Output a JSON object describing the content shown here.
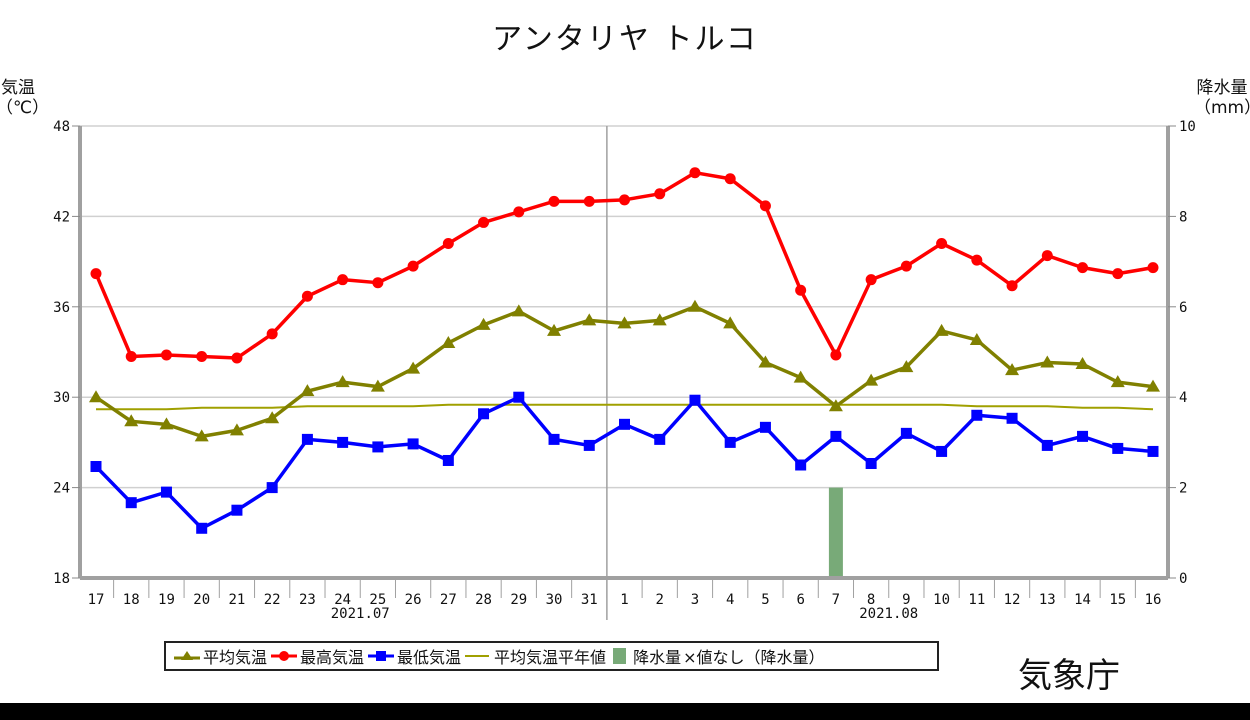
{
  "title": "アンタリヤ トルコ",
  "credit": "気象庁",
  "left_axis": {
    "label_line1": "気温",
    "label_line2": "（℃）",
    "ticks": [
      "48",
      "42",
      "36",
      "30",
      "24",
      "18"
    ]
  },
  "right_axis": {
    "label_line1": "降水量",
    "label_line2": "（mm）",
    "ticks": [
      "10",
      "8",
      "6",
      "4",
      "2",
      "0"
    ]
  },
  "legend": {
    "mean": "平均気温",
    "max": "最高気温",
    "min": "最低気温",
    "normal": "平均気温平年値",
    "precip": "降水量",
    "no_value": "×値なし（降水量）"
  },
  "colors": {
    "mean": "#808000",
    "max": "#ff0000",
    "min": "#0000ff",
    "normal": "#a0a000",
    "precip": "#78aa78",
    "grid": "#d0d0d0",
    "axis": "#a0a0a0"
  },
  "chart_data": {
    "type": "line",
    "title": "アンタリヤ トルコ",
    "xlabel": "",
    "ylabel": "気温（℃）",
    "y2label": "降水量（mm）",
    "ylim": [
      18,
      48
    ],
    "y2lim": [
      0,
      10
    ],
    "grid": true,
    "legend_position": "bottom",
    "month_labels": [
      {
        "label": "2021.07",
        "at": "24"
      },
      {
        "label": "2021.08",
        "at": "8"
      }
    ],
    "categories": [
      "17",
      "18",
      "19",
      "20",
      "21",
      "22",
      "23",
      "24",
      "25",
      "26",
      "27",
      "28",
      "29",
      "30",
      "31",
      "1",
      "2",
      "3",
      "4",
      "5",
      "6",
      "7",
      "8",
      "9",
      "10",
      "11",
      "12",
      "13",
      "14",
      "15",
      "16"
    ],
    "series": [
      {
        "name": "平均気温",
        "type": "line",
        "marker": "triangle",
        "values": [
          30.0,
          28.4,
          28.2,
          27.4,
          27.8,
          28.6,
          30.4,
          31.0,
          30.7,
          31.9,
          33.6,
          34.8,
          35.7,
          34.4,
          35.1,
          34.9,
          35.1,
          36.0,
          34.9,
          32.3,
          31.3,
          29.4,
          31.1,
          32.0,
          34.4,
          33.8,
          31.8,
          32.3,
          32.2,
          31.0,
          30.7
        ]
      },
      {
        "name": "最高気温",
        "type": "line",
        "marker": "circle",
        "values": [
          38.2,
          32.7,
          32.8,
          32.7,
          32.6,
          34.2,
          36.7,
          37.8,
          37.6,
          38.7,
          40.2,
          41.6,
          42.3,
          43.0,
          43.0,
          43.1,
          43.5,
          44.9,
          44.5,
          42.7,
          37.1,
          32.8,
          37.8,
          38.7,
          40.2,
          39.1,
          37.4,
          39.4,
          38.6,
          38.2,
          38.6
        ]
      },
      {
        "name": "最低気温",
        "type": "line",
        "marker": "square",
        "values": [
          25.4,
          23.0,
          23.7,
          21.3,
          22.5,
          24.0,
          27.2,
          27.0,
          26.7,
          26.9,
          25.8,
          28.9,
          30.0,
          27.2,
          26.8,
          28.2,
          27.2,
          29.8,
          27.0,
          28.0,
          25.5,
          27.4,
          25.6,
          27.6,
          26.4,
          28.8,
          28.6,
          26.8,
          27.4,
          26.6,
          26.4
        ]
      },
      {
        "name": "平均気温平年値",
        "type": "line",
        "marker": "none",
        "values": [
          29.2,
          29.2,
          29.2,
          29.3,
          29.3,
          29.3,
          29.4,
          29.4,
          29.4,
          29.4,
          29.5,
          29.5,
          29.5,
          29.5,
          29.5,
          29.5,
          29.5,
          29.5,
          29.5,
          29.5,
          29.5,
          29.5,
          29.5,
          29.5,
          29.5,
          29.4,
          29.4,
          29.4,
          29.3,
          29.3,
          29.2
        ]
      },
      {
        "name": "降水量",
        "type": "bar",
        "axis": "right",
        "values": [
          0,
          0,
          0,
          0,
          0,
          0,
          0,
          0,
          0,
          0,
          0,
          0,
          0,
          0,
          0,
          0,
          0,
          0,
          0,
          0,
          0,
          2.0,
          0,
          0,
          0,
          0,
          0,
          0,
          0,
          0,
          0
        ]
      }
    ]
  }
}
